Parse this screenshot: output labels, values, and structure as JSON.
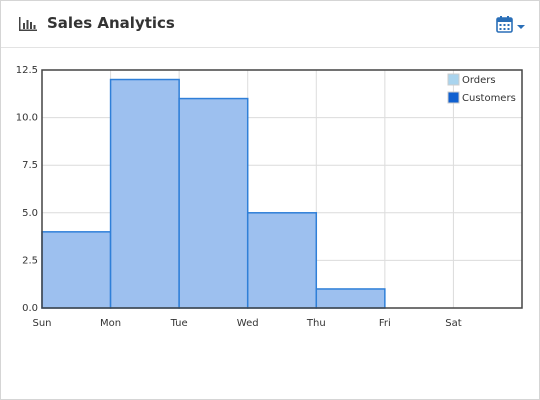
{
  "chart_data": {
    "type": "bar",
    "title": "Sales Analytics",
    "categories": [
      "Sun",
      "Mon",
      "Tue",
      "Wed",
      "Thu",
      "Fri",
      "Sat"
    ],
    "values": [
      4,
      12,
      11,
      5,
      1,
      0,
      0
    ],
    "color": "#9dc0ef",
    "edge_color": "#2f7fd8",
    "ylim": [
      0,
      12.5
    ],
    "yticks": [
      {
        "value": 0,
        "label": "0.0"
      },
      2.5,
      {
        "value": 5,
        "label": "5.0"
      },
      7.5,
      {
        "value": 10,
        "label": "10.0"
      },
      12.5
    ],
    "grid": true,
    "legend": [
      {
        "name": "Orders",
        "color": "#a9d4ee"
      },
      {
        "name": "Customers",
        "color": "#1060d0"
      }
    ],
    "legend_position": "upper right"
  }
}
